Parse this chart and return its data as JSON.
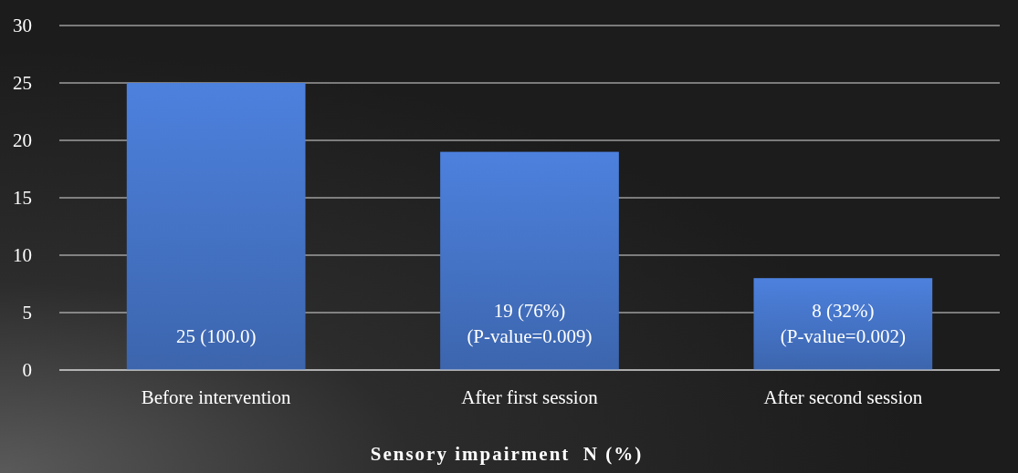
{
  "chart_data": {
    "type": "bar",
    "xlabel": "Sensory impairment  N (%)",
    "categories": [
      "Before intervention",
      "After first session",
      "After second session"
    ],
    "values": [
      25,
      19,
      8
    ],
    "color": "#4472c4",
    "value_labels": [
      "25 (100.0)",
      "19 (76%)\n(P-value=0.009)",
      "8 (32%)\n(P-value=0.002)"
    ],
    "ylim": [
      0,
      30
    ],
    "yticks": [
      0,
      5,
      10,
      15,
      20,
      25,
      30
    ],
    "grid": "y"
  }
}
